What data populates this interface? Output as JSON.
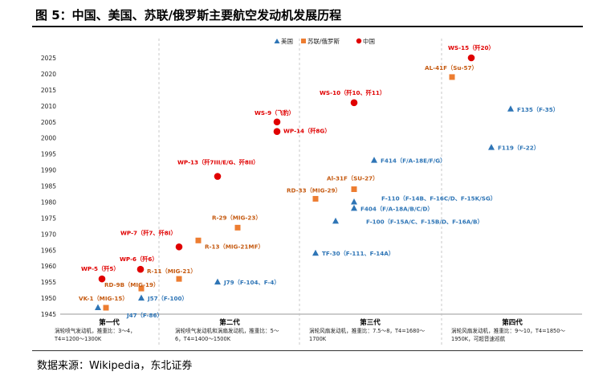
{
  "figure": {
    "title": "图 5：中国、美国、苏联/俄罗斯主要航空发动机发展历程",
    "source": "数据来源：Wikipedia，东北证券"
  },
  "colors": {
    "usa": "#2E75B6",
    "ussr": "#ED7D31",
    "china": "#E00000",
    "ussr_label": "#C55A11",
    "china_label": "#E00000",
    "usa_label": "#2E75B6"
  },
  "chart_data": {
    "type": "scatter",
    "ylim": [
      1945,
      2025
    ],
    "y_ticks": [
      1945,
      1950,
      1955,
      1960,
      1965,
      1970,
      1975,
      1980,
      1985,
      1990,
      1995,
      2000,
      2005,
      2010,
      2015,
      2020,
      2025
    ],
    "legend": {
      "position": "top-right",
      "entries": [
        "美国",
        "苏联/俄罗斯",
        "中国"
      ]
    },
    "generations": [
      {
        "name": "第一代",
        "desc": [
          "涡轮喷气发动机，推重比：3～4，",
          "T4=1200～1300K"
        ]
      },
      {
        "name": "第二代",
        "desc": [
          "涡轮喷气发动机和涡扇发动机，推重比：5～",
          "6，T4=1400～1500K"
        ]
      },
      {
        "name": "第三代",
        "desc": [
          "涡轮风扇发动机，推重比：7.5～8，T4=1680～",
          "1700K"
        ]
      },
      {
        "name": "第四代",
        "desc": [
          "涡轮风扇发动机，推重比：9～10，T4=1850～",
          "1950K，可超音速巡航"
        ]
      }
    ],
    "series": [
      {
        "name": "美国",
        "points": [
          {
            "label": "J47（F-86）",
            "gen": 1,
            "y": 1947
          },
          {
            "label": "J57（F-100）",
            "gen": 1,
            "y": 1950
          },
          {
            "label": "J79（F-104、F-4）",
            "gen": 2,
            "y": 1955
          },
          {
            "label": "TF-30（F-111、F-14A）",
            "gen": 3,
            "y": 1964
          },
          {
            "label": "F-100（F-15A/C、F-15B/D、F-16A/B）",
            "gen": 3,
            "y": 1974
          },
          {
            "label": "F404（F/A-18A/B/C/D）",
            "gen": 3,
            "y": 1978
          },
          {
            "label": "F-110（F-14B、F-16C/D、F-15K/SG）",
            "gen": 3,
            "y": 1980
          },
          {
            "label": "F414（F/A-18E/F/G）",
            "gen": 3,
            "y": 1993
          },
          {
            "label": "F119（F-22）",
            "gen": 4,
            "y": 1997
          },
          {
            "label": "F135（F-35）",
            "gen": 4,
            "y": 2009
          }
        ]
      },
      {
        "name": "苏联/俄罗斯",
        "points": [
          {
            "label": "VK-1（MIG-15）",
            "gen": 1,
            "y": 1947
          },
          {
            "label": "RD-9B（MIG-19）",
            "gen": 1,
            "y": 1953
          },
          {
            "label": "R-11（MIG-21）",
            "gen": 1,
            "y": 1956
          },
          {
            "label": "R-13（MIG-21MF）",
            "gen": 2,
            "y": 1968
          },
          {
            "label": "R-29（MIG-23）",
            "gen": 2,
            "y": 1972
          },
          {
            "label": "RD-33（MIG-29）",
            "gen": 3,
            "y": 1981
          },
          {
            "label": "Al-31F（SU-27）",
            "gen": 3,
            "y": 1984
          },
          {
            "label": "AL-41F（Su-57）",
            "gen": 4,
            "y": 2019
          }
        ]
      },
      {
        "name": "中国",
        "points": [
          {
            "label": "WP-5（歼5）",
            "gen": 1,
            "y": 1956
          },
          {
            "label": "WP-6（歼6）",
            "gen": 1,
            "y": 1959
          },
          {
            "label": "WP-7（歼7、歼8I）",
            "gen": 1,
            "y": 1966
          },
          {
            "label": "WP-13（歼7III/E/G、歼8II）",
            "gen": 2,
            "y": 1988
          },
          {
            "label": "WS-9（飞豹）",
            "gen": 2,
            "y": 2005
          },
          {
            "label": "WP-14（歼8G）",
            "gen": 2,
            "y": 2002
          },
          {
            "label": "WS-10（歼10、歼11）",
            "gen": 3,
            "y": 2011
          },
          {
            "label": "WS-15（歼20）",
            "gen": 4,
            "y": 2025
          }
        ]
      }
    ]
  }
}
